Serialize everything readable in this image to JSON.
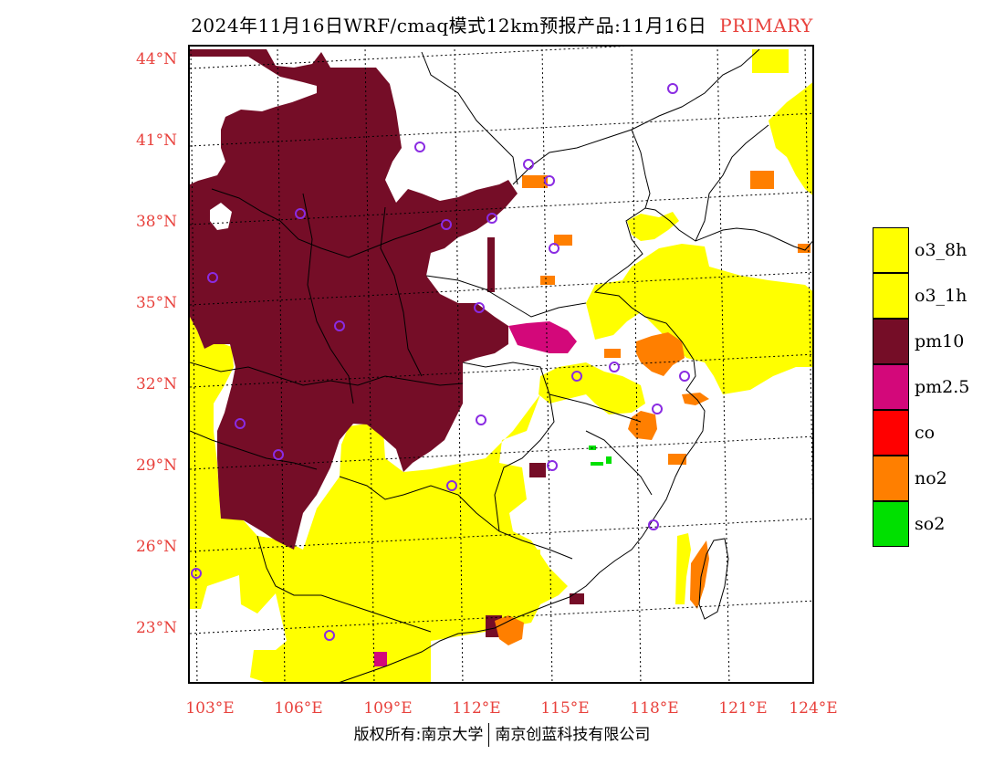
{
  "title": {
    "main": "2024年11月16日WRF/cmaq模式12km预报产品:11月16日",
    "tag": "PRIMARY",
    "tag_color": "#e8413c"
  },
  "axes": {
    "lat_labels": [
      "44°N",
      "41°N",
      "38°N",
      "35°N",
      "32°N",
      "29°N",
      "26°N",
      "23°N"
    ],
    "lon_labels": [
      "103°E",
      "106°E",
      "109°E",
      "112°E",
      "115°E",
      "118°E",
      "121°E",
      "124°E"
    ],
    "label_color": "#e8413c"
  },
  "legend": [
    {
      "label": "o3_8h",
      "color": "#ffff00"
    },
    {
      "label": "o3_1h",
      "color": "#ffff00"
    },
    {
      "label": "pm10",
      "color": "#750d27"
    },
    {
      "label": "pm2.5",
      "color": "#d3087a"
    },
    {
      "label": "co",
      "color": "#ff0000"
    },
    {
      "label": "no2",
      "color": "#ff7f00"
    },
    {
      "label": "so2",
      "color": "#00e000"
    }
  ],
  "footer": {
    "left": "版权所有:南京大学",
    "right": "南京创蓝科技有限公司"
  },
  "map": {
    "marker_color": "#8a2be2",
    "colors": {
      "o3": "#ffff00",
      "pm10": "#750d27",
      "pm25": "#d3087a",
      "no2": "#ff7f00",
      "so2": "#00e000"
    }
  }
}
